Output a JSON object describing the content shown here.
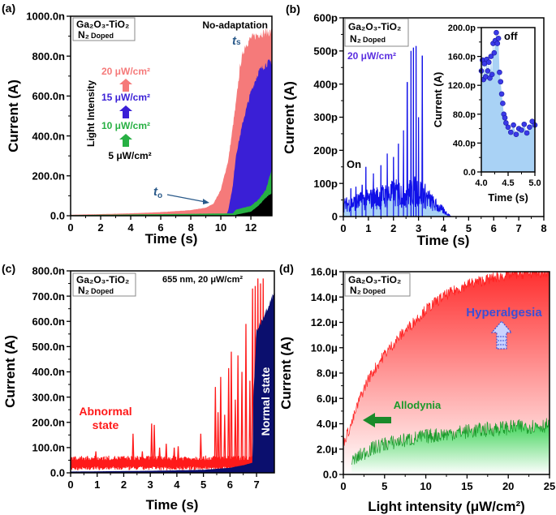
{
  "figure_labels": {
    "a": "(a)",
    "b": "(b)",
    "c": "(c)",
    "d": "(d)"
  },
  "sample_box": {
    "line1": "Ga₂O₃-TiO₂",
    "n2": "N₂",
    "doped": "Doped"
  },
  "colors": {
    "pink": "#f57a7a",
    "blue15": "#3a1fd6",
    "green10": "#27b043",
    "black5": "#000000",
    "bline": "#1010e8",
    "bfill": "#a9d2f5",
    "red": "#ff1a1a",
    "navy": "#0b0f6e",
    "greenD": "#1a9a2a",
    "hyper": "#3b4fd6"
  },
  "chart_data": [
    {
      "id": "a",
      "type": "area",
      "xlabel": "Time (s)",
      "ylabel": "Current (A)",
      "xlim": [
        0,
        13.4
      ],
      "ylim": [
        0,
        1000
      ],
      "xticks": [
        0,
        2,
        4,
        6,
        8,
        10,
        12
      ],
      "xtick_labels": [
        "0",
        "2",
        "4",
        "6",
        "8",
        "10",
        "12"
      ],
      "yticks": [
        0,
        200,
        400,
        600,
        800,
        1000
      ],
      "ytick_labels": [
        "0.0",
        "200.0n",
        "400.0n",
        "600.0n",
        "800.0n",
        "1000.0n"
      ],
      "annotations": {
        "title": "No-adaptation",
        "ts": "t",
        "ts_sub": "s",
        "to": "t",
        "to_sub": "o",
        "light_intensity": "Light Intensity"
      },
      "series": [
        {
          "name": "20 μW/cm²",
          "color": "#f57a7a",
          "x": [
            0,
            2,
            4,
            6,
            8,
            9,
            9.5,
            10,
            10.5,
            11,
            11.3,
            11.6,
            12,
            12.5,
            13,
            13.4
          ],
          "y": [
            5,
            8,
            12,
            18,
            28,
            40,
            60,
            130,
            280,
            560,
            760,
            850,
            890,
            910,
            920,
            920
          ]
        },
        {
          "name": "15 μW/cm²",
          "color": "#3a1fd6",
          "x": [
            0,
            10.4,
            10.5,
            10.8,
            11,
            11.5,
            12,
            12.5,
            13,
            13.4
          ],
          "y": [
            0,
            10,
            30,
            150,
            300,
            480,
            620,
            720,
            760,
            775
          ]
        },
        {
          "name": "10 μW/cm²",
          "color": "#27b043",
          "x": [
            0,
            6,
            10.8,
            11,
            12,
            12.5,
            13,
            13.4
          ],
          "y": [
            3,
            8,
            12,
            30,
            50,
            80,
            130,
            240
          ]
        },
        {
          "name": "5 μW/cm²",
          "color": "#000000",
          "x": [
            0,
            10.9,
            11,
            12,
            12.5,
            13,
            13.4
          ],
          "y": [
            0,
            0,
            5,
            20,
            50,
            90,
            115
          ]
        }
      ]
    },
    {
      "id": "b",
      "type": "line",
      "xlabel": "Time (s)",
      "ylabel": "Current (A)",
      "xlim": [
        0,
        8
      ],
      "ylim": [
        0,
        600
      ],
      "xticks": [
        0,
        1,
        2,
        3,
        4,
        5,
        6,
        7,
        8
      ],
      "xtick_labels": [
        "0",
        "1",
        "2",
        "3",
        "4",
        "5",
        "6",
        "7",
        "8"
      ],
      "yticks": [
        0,
        100,
        200,
        300,
        400,
        500,
        600
      ],
      "ytick_labels": [
        "0",
        "100p",
        "200p",
        "300p",
        "400p",
        "500p",
        "600p"
      ],
      "annotations": {
        "intensity": "20 μW/cm²",
        "on": "On"
      },
      "baseline": {
        "x": [
          0,
          1,
          2,
          3,
          3.3,
          3.6,
          4,
          4.3
        ],
        "y": [
          40,
          60,
          80,
          90,
          70,
          45,
          20,
          0
        ]
      },
      "peaks": {
        "x": [
          0.3,
          0.5,
          0.75,
          0.9,
          1.2,
          1.5,
          1.75,
          2.0,
          2.2,
          2.4,
          2.55,
          2.7,
          2.8,
          2.9,
          3.0,
          3.15
        ],
        "y": [
          85,
          90,
          95,
          150,
          130,
          155,
          190,
          180,
          220,
          260,
          405,
          500,
          510,
          515,
          300,
          485
        ]
      },
      "inset": {
        "type": "scatter",
        "xlabel": "Time (s)",
        "ylabel": "Current (A)",
        "annotation": "off",
        "xlim": [
          4,
          5
        ],
        "ylim": [
          0,
          200
        ],
        "xticks": [
          4,
          4.5,
          5
        ],
        "xtick_labels": [
          "4.0",
          "4.5",
          "5.0"
        ],
        "yticks": [
          0,
          40,
          80,
          120,
          160,
          200
        ],
        "ytick_labels": [
          "0.0",
          "40.0p",
          "80.0p",
          "120.0p",
          "160.0p",
          "200.0p"
        ],
        "x": [
          4.0,
          4.02,
          4.04,
          4.06,
          4.08,
          4.1,
          4.12,
          4.14,
          4.16,
          4.18,
          4.2,
          4.22,
          4.24,
          4.26,
          4.28,
          4.3,
          4.32,
          4.34,
          4.36,
          4.38,
          4.4,
          4.42,
          4.44,
          4.46,
          4.5,
          4.55,
          4.6,
          4.65,
          4.7,
          4.75,
          4.8,
          4.85,
          4.9,
          4.95,
          5.0
        ],
        "y": [
          140,
          155,
          128,
          150,
          132,
          156,
          140,
          152,
          130,
          160,
          135,
          178,
          165,
          182,
          193,
          178,
          185,
          138,
          125,
          108,
          95,
          80,
          75,
          68,
          62,
          55,
          65,
          52,
          60,
          58,
          66,
          54,
          62,
          70,
          65
        ]
      }
    },
    {
      "id": "c",
      "type": "line+area",
      "xlabel": "Time (s)",
      "ylabel": "Current (A)",
      "xlim": [
        0,
        7.67
      ],
      "ylim": [
        0,
        800
      ],
      "xticks": [
        0,
        1,
        2,
        3,
        4,
        5,
        6,
        7
      ],
      "xtick_labels": [
        "0",
        "1",
        "2",
        "3",
        "4",
        "5",
        "6",
        "7"
      ],
      "yticks": [
        0,
        100,
        200,
        300,
        400,
        500,
        600,
        700,
        800
      ],
      "ytick_labels": [
        "0.0",
        "100.0n",
        "200.0n",
        "300.0n",
        "400.0n",
        "500.0n",
        "600.0n",
        "700.0n",
        "800.0n"
      ],
      "annotations": {
        "condition": "655 nm, 20 μW/cm²",
        "abnormal1": "Abnormal",
        "abnormal2": "state",
        "normal": "Normal state"
      },
      "abnormal_peaks": {
        "x": [
          0.95,
          2.35,
          2.7,
          3.05,
          3.15,
          3.35,
          3.6,
          3.9,
          4.05,
          4.9,
          5.45,
          5.55,
          5.65,
          5.8,
          5.95,
          6.05,
          6.2,
          6.3,
          6.45,
          6.6,
          6.75,
          6.85,
          6.95,
          7.05,
          7.15,
          7.25
        ],
        "y": [
          85,
          155,
          85,
          195,
          190,
          100,
          115,
          100,
          105,
          155,
          340,
          240,
          380,
          230,
          415,
          480,
          290,
          465,
          400,
          590,
          365,
          730,
          740,
          770,
          750,
          770
        ]
      },
      "normal_state": {
        "x": [
          0,
          3,
          5,
          6,
          6.5,
          6.85,
          6.88,
          7.0,
          7.3,
          7.6,
          7.67
        ],
        "y": [
          5,
          8,
          12,
          20,
          30,
          40,
          300,
          560,
          630,
          700,
          710
        ]
      }
    },
    {
      "id": "d",
      "type": "area",
      "xlabel": "Light intensity (μW/cm²)",
      "ylabel": "Current (A)",
      "xlim": [
        0,
        25
      ],
      "ylim": [
        0,
        16
      ],
      "xticks": [
        0,
        5,
        10,
        15,
        20,
        25
      ],
      "xtick_labels": [
        "0",
        "5",
        "10",
        "15",
        "20",
        "25"
      ],
      "yticks": [
        0,
        2,
        4,
        6,
        8,
        10,
        12,
        14,
        16
      ],
      "ytick_labels": [
        "0.0",
        "2.0μ",
        "4.0μ",
        "6.0μ",
        "8.0μ",
        "10.0μ",
        "12.0μ",
        "14.0μ",
        "16.0μ"
      ],
      "annotations": {
        "hyper": "Hyperalgesia",
        "allo": "Allodynia"
      },
      "series": [
        {
          "name": "Hyperalgesia",
          "x": [
            0,
            1,
            2,
            3,
            5,
            7,
            10,
            12,
            15,
            20,
            25
          ],
          "y": [
            2.5,
            4,
            6,
            7.5,
            9.5,
            11,
            13,
            14,
            15,
            15.8,
            16
          ]
        },
        {
          "name": "Allodynia",
          "x": [
            1,
            3,
            5,
            10,
            15,
            20,
            25
          ],
          "y": [
            1,
            1.9,
            2.4,
            3,
            3.4,
            3.7,
            3.9
          ]
        }
      ]
    }
  ]
}
